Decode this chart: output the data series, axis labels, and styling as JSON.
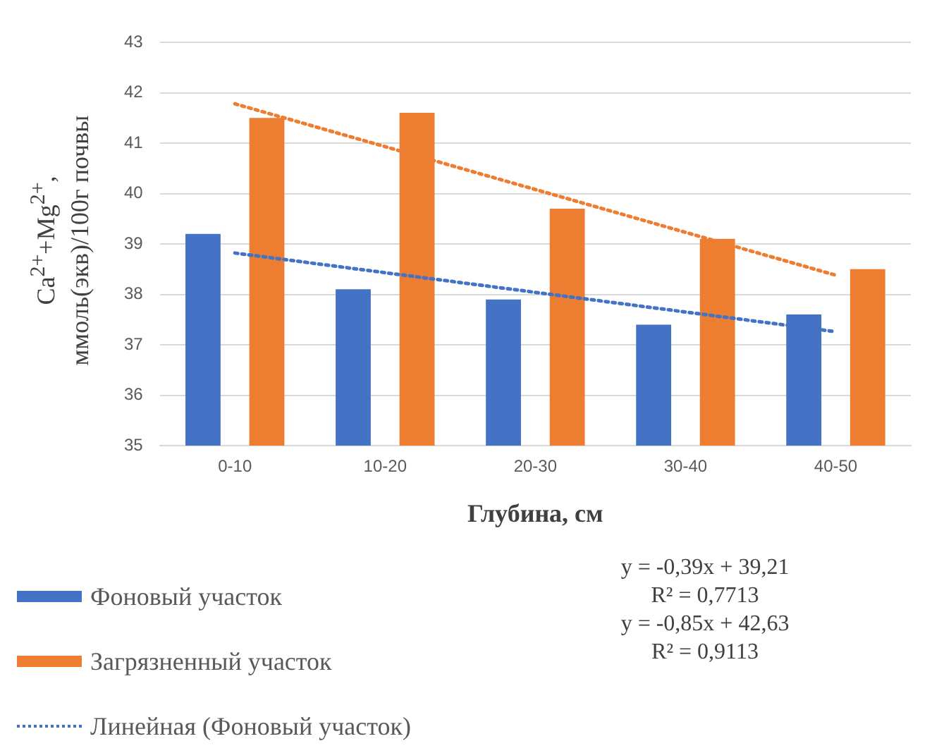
{
  "chart_data": {
    "type": "bar",
    "xlabel": "Глубина, см",
    "ylabel": "Ca$^{2+}$+Mg$^{2+}$, ммоль(экв)/100г почвы",
    "categories": [
      "0-10",
      "10-20",
      "20-30",
      "30-40",
      "40-50"
    ],
    "series": [
      {
        "name": "Фоновый участок",
        "color": "#4472c4",
        "values": [
          39.2,
          38.1,
          37.9,
          37.4,
          37.6
        ]
      },
      {
        "name": "Загрязненный участок",
        "color": "#ed7d31",
        "values": [
          41.5,
          41.6,
          39.7,
          39.1,
          38.5
        ]
      },
      {
        "name": "Линейная (Фоновый участок)",
        "type": "line",
        "line_style": "dotted",
        "color": "#4472c4",
        "values": [
          38.82,
          38.43,
          38.04,
          37.65,
          37.26
        ]
      },
      {
        "type": "line",
        "line_style": "dotted",
        "color": "#ed7d31",
        "values": [
          41.78,
          40.93,
          40.08,
          39.23,
          38.38
        ]
      }
    ],
    "ylim": [
      35,
      43
    ],
    "yticks": [
      35,
      36,
      37,
      38,
      39,
      40,
      41,
      42,
      43
    ],
    "grid": "y",
    "legend": "bottom",
    "marker": "none",
    "annotations": [
      "y = -0,39x + 39,21",
      "R² = 0,7713",
      "y = -0,85x + 42,63",
      "R² = 0,9113"
    ]
  }
}
